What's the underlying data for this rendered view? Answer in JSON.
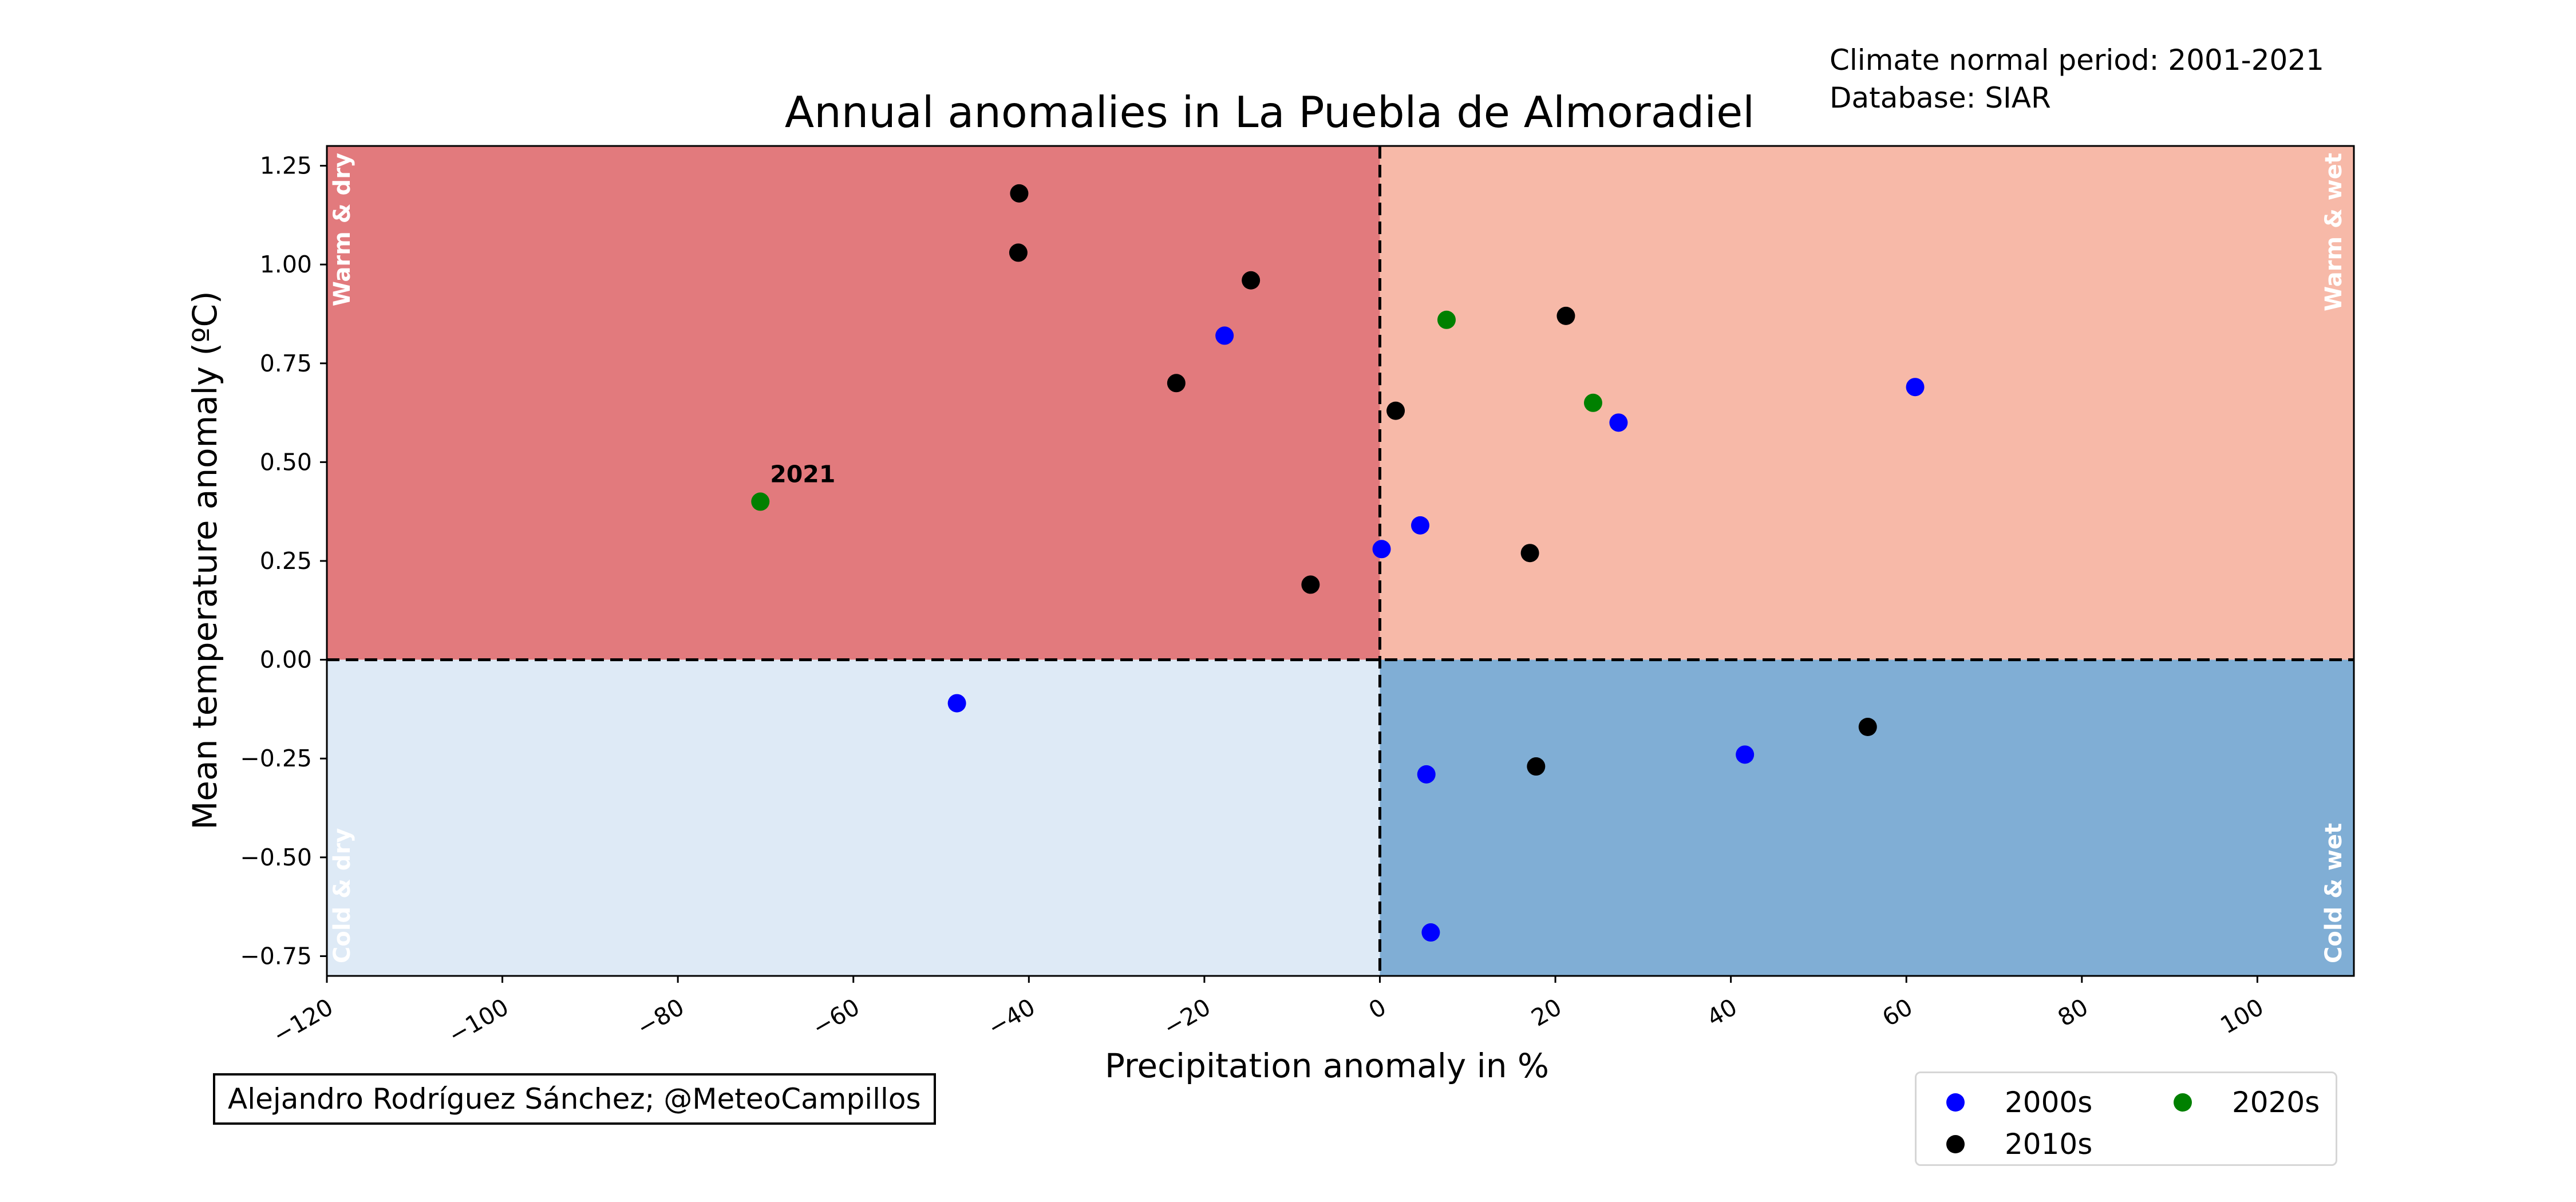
{
  "chart_data": {
    "type": "scatter",
    "title": "Annual anomalies in La Puebla de Almoradiel",
    "xlabel": "Precipitation anomaly in %",
    "ylabel": "Mean temperature anomaly (ºC)",
    "xlim": [
      -120,
      111
    ],
    "ylim": [
      -0.8,
      1.3
    ],
    "x_ticks": [
      -120,
      -100,
      -80,
      -60,
      -40,
      -20,
      0,
      20,
      40,
      60,
      80,
      100
    ],
    "y_ticks": [
      -0.75,
      -0.5,
      -0.25,
      0.0,
      0.25,
      0.5,
      0.75,
      1.0,
      1.25
    ],
    "quadrants": [
      {
        "label": "Warm & dry",
        "color": "#e27a7d"
      },
      {
        "label": "Warm & wet",
        "color": "#f7b9a8"
      },
      {
        "label": "Cold & dry",
        "color": "#deeaf6"
      },
      {
        "label": "Cold & wet",
        "color": "#80aed5"
      }
    ],
    "series": [
      {
        "name": "2000s",
        "color": "#0000ff",
        "points": [
          {
            "x": -17.7,
            "y": 0.82
          },
          {
            "x": 61.0,
            "y": 0.69
          },
          {
            "x": 27.2,
            "y": 0.6
          },
          {
            "x": 4.6,
            "y": 0.34
          },
          {
            "x": 0.2,
            "y": 0.28
          },
          {
            "x": -48.2,
            "y": -0.11
          },
          {
            "x": 41.6,
            "y": -0.24
          },
          {
            "x": 5.3,
            "y": -0.29
          },
          {
            "x": 5.8,
            "y": -0.69
          }
        ]
      },
      {
        "name": "2010s",
        "color": "#000000",
        "points": [
          {
            "x": -41.1,
            "y": 1.18
          },
          {
            "x": -41.2,
            "y": 1.03
          },
          {
            "x": -14.7,
            "y": 0.96
          },
          {
            "x": -23.2,
            "y": 0.7
          },
          {
            "x": 21.2,
            "y": 0.87
          },
          {
            "x": 1.8,
            "y": 0.63
          },
          {
            "x": 17.1,
            "y": 0.27
          },
          {
            "x": -7.9,
            "y": 0.19
          },
          {
            "x": 55.6,
            "y": -0.17
          },
          {
            "x": 17.8,
            "y": -0.27
          }
        ]
      },
      {
        "name": "2020s",
        "color": "#008000",
        "points": [
          {
            "x": 7.6,
            "y": 0.86
          },
          {
            "x": 24.3,
            "y": 0.65
          },
          {
            "x": -70.6,
            "y": 0.4,
            "label": "2021"
          }
        ]
      }
    ],
    "legend_position": "lower-right"
  },
  "credit": "Alejandro Rodríguez Sánchez; @MeteoCampillos",
  "info": {
    "normal_period": "Climate normal period: 2001-2021",
    "database": "Database: SIAR"
  },
  "legend": [
    {
      "label": "2000s",
      "color": "#0000ff"
    },
    {
      "label": "2020s",
      "color": "#008000"
    },
    {
      "label": "2010s",
      "color": "#000000"
    }
  ]
}
